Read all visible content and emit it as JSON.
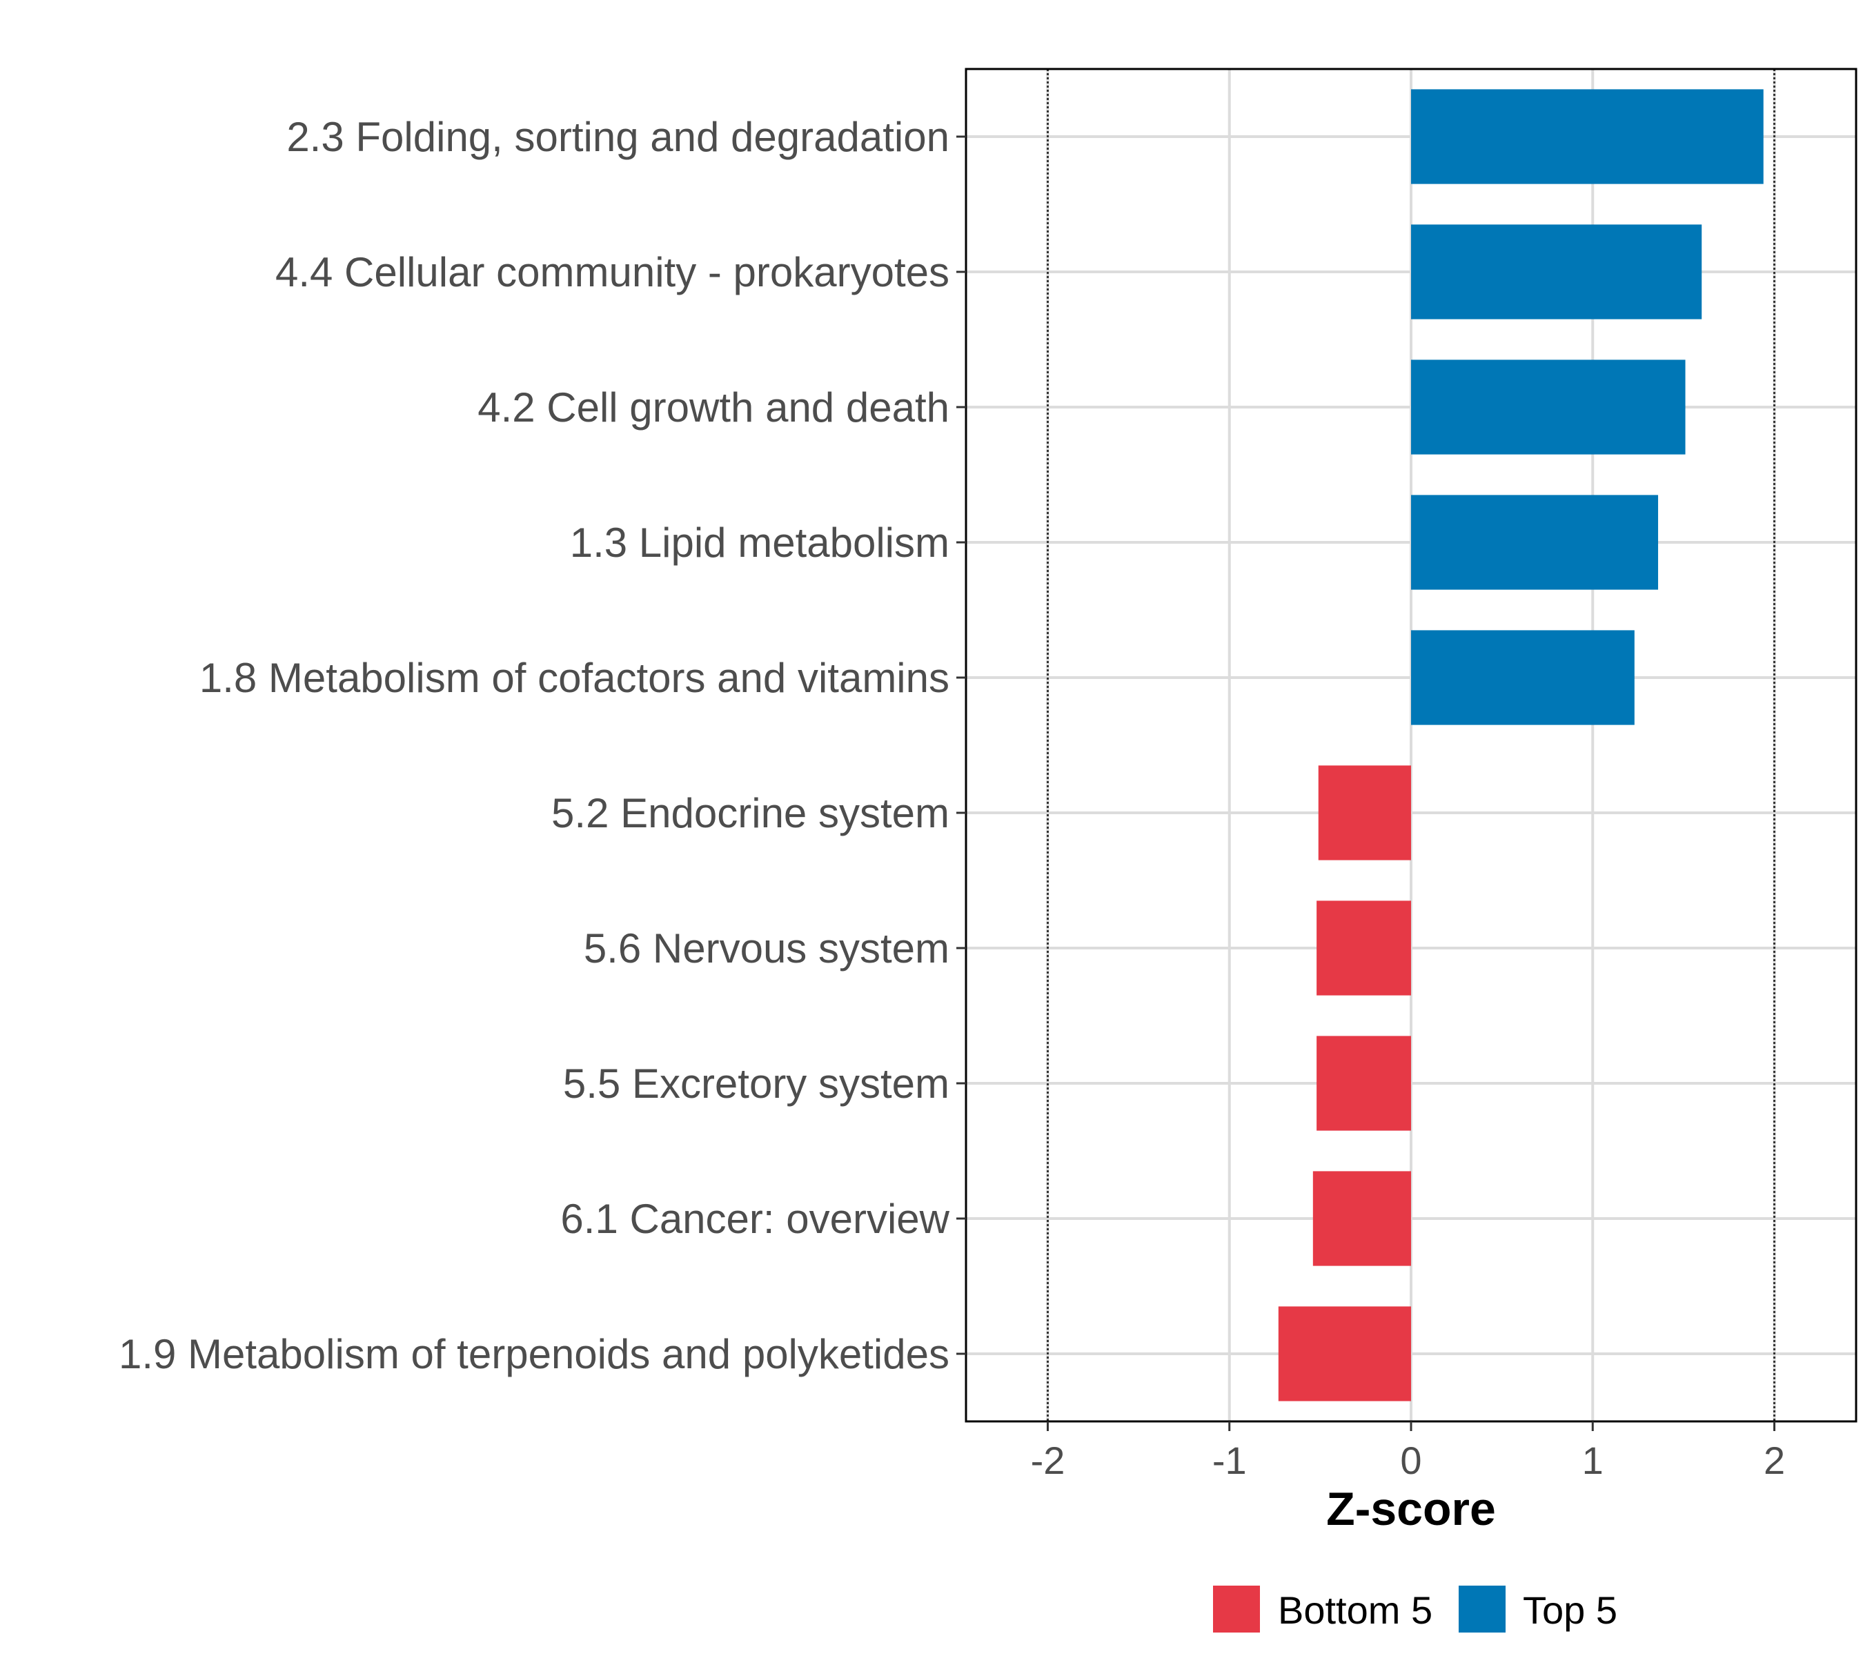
{
  "chart_data": {
    "type": "bar",
    "orientation": "horizontal",
    "categories": [
      "2.3 Folding, sorting and degradation",
      "4.4 Cellular community - prokaryotes",
      "4.2 Cell growth and death",
      "1.3 Lipid metabolism",
      "1.8 Metabolism of cofactors and vitamins",
      "5.2 Endocrine system",
      "5.6 Nervous system",
      "5.5 Excretory system",
      "6.1 Cancer: overview",
      "1.9 Metabolism of terpenoids and polyketides"
    ],
    "values": [
      1.94,
      1.6,
      1.51,
      1.36,
      1.23,
      -0.51,
      -0.52,
      -0.52,
      -0.54,
      -0.73
    ],
    "groups": [
      "Top 5",
      "Top 5",
      "Top 5",
      "Top 5",
      "Top 5",
      "Bottom 5",
      "Bottom 5",
      "Bottom 5",
      "Bottom 5",
      "Bottom 5"
    ],
    "xlabel": "Z-score",
    "ylabel": "",
    "xlim": [
      -2.45,
      2.45
    ],
    "xticks": [
      -2,
      -1,
      0,
      1,
      2
    ],
    "xtick_labels": [
      "-2",
      "-1",
      "0",
      "1",
      "2"
    ],
    "reference_lines": [
      -2,
      2
    ],
    "grid": true,
    "legend": {
      "position": "bottom",
      "entries": [
        {
          "label": "Bottom 5",
          "color": "#e63946"
        },
        {
          "label": "Top 5",
          "color": "#0077b6"
        }
      ]
    }
  }
}
